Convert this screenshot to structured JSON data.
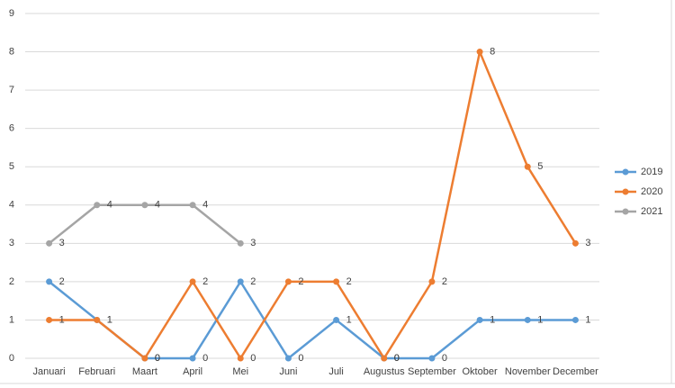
{
  "chart_data": {
    "type": "line",
    "categories": [
      "Januari",
      "Februari",
      "Maart",
      "April",
      "Mei",
      "Juni",
      "Juli",
      "Augustus",
      "September",
      "Oktober",
      "November",
      "December"
    ],
    "series": [
      {
        "name": "2019",
        "color": "#5b9bd5",
        "values": [
          2,
          1,
          0,
          0,
          2,
          0,
          1,
          0,
          0,
          1,
          1,
          1
        ]
      },
      {
        "name": "2020",
        "color": "#ed7d31",
        "values": [
          1,
          1,
          0,
          2,
          0,
          2,
          2,
          0,
          2,
          8,
          5,
          3
        ]
      },
      {
        "name": "2021",
        "color": "#a5a5a5",
        "values": [
          3,
          4,
          4,
          4,
          3,
          null,
          null,
          null,
          null,
          null,
          null,
          null
        ]
      }
    ],
    "ylim": [
      0,
      9
    ],
    "yticks": [
      0,
      1,
      2,
      3,
      4,
      5,
      6,
      7,
      8,
      9
    ],
    "grid": true,
    "legend": "right"
  }
}
